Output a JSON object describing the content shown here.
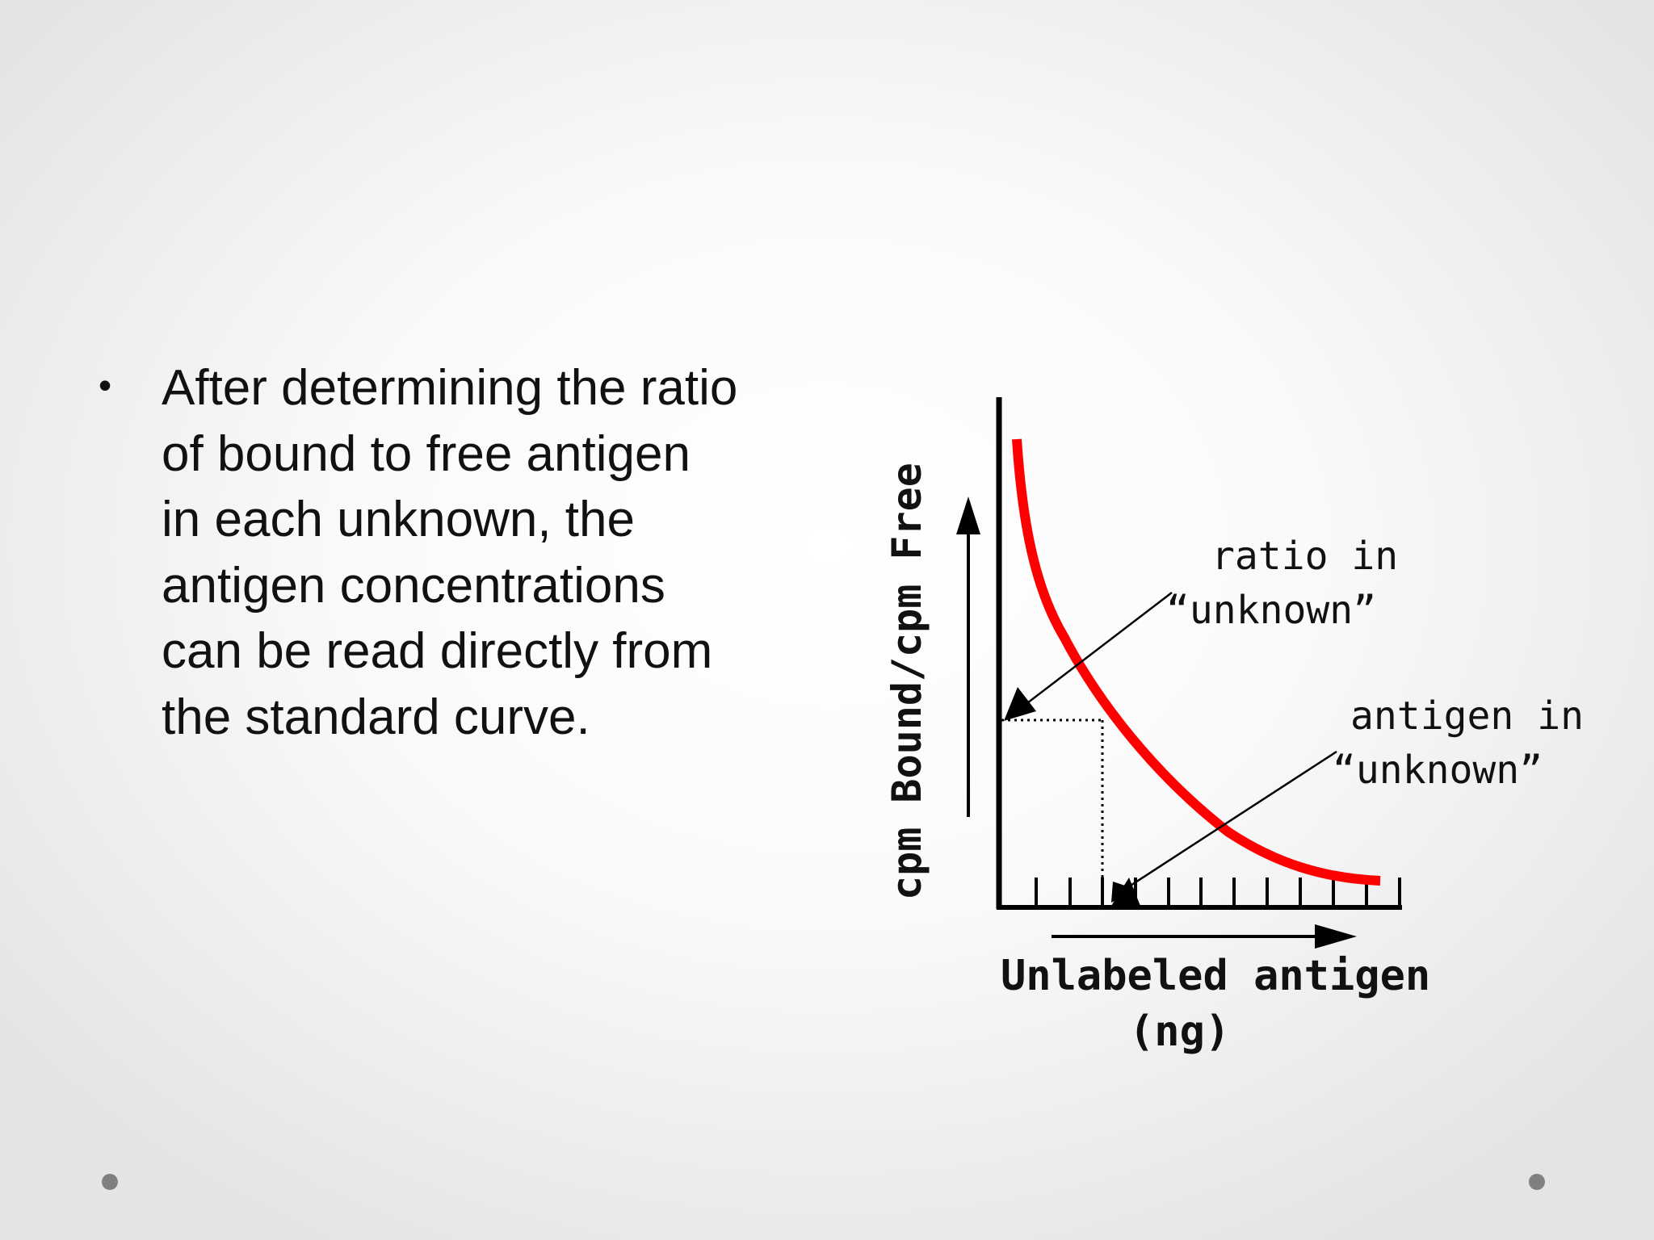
{
  "slide": {
    "bullet_lines": [
      "After determining the ratio",
      "of bound to free antigen",
      "in each unknown, the",
      "antigen concentrations",
      "can be read directly from",
      "the standard curve."
    ],
    "bullet_glyph": "•"
  },
  "diagram": {
    "y_axis_label": "cpm Bound/cpm Free",
    "x_axis_label_line1": "Unlabeled antigen",
    "x_axis_label_line2": "(ng)",
    "callout_ratio_line1": "ratio in",
    "callout_ratio_line2": "“unknown”",
    "callout_antigen_line1": "antigen in",
    "callout_antigen_line2": "“unknown”",
    "curve_color": "#ff0000",
    "ink_color": "#000000"
  },
  "decor": {
    "dot_color": "#808080"
  }
}
